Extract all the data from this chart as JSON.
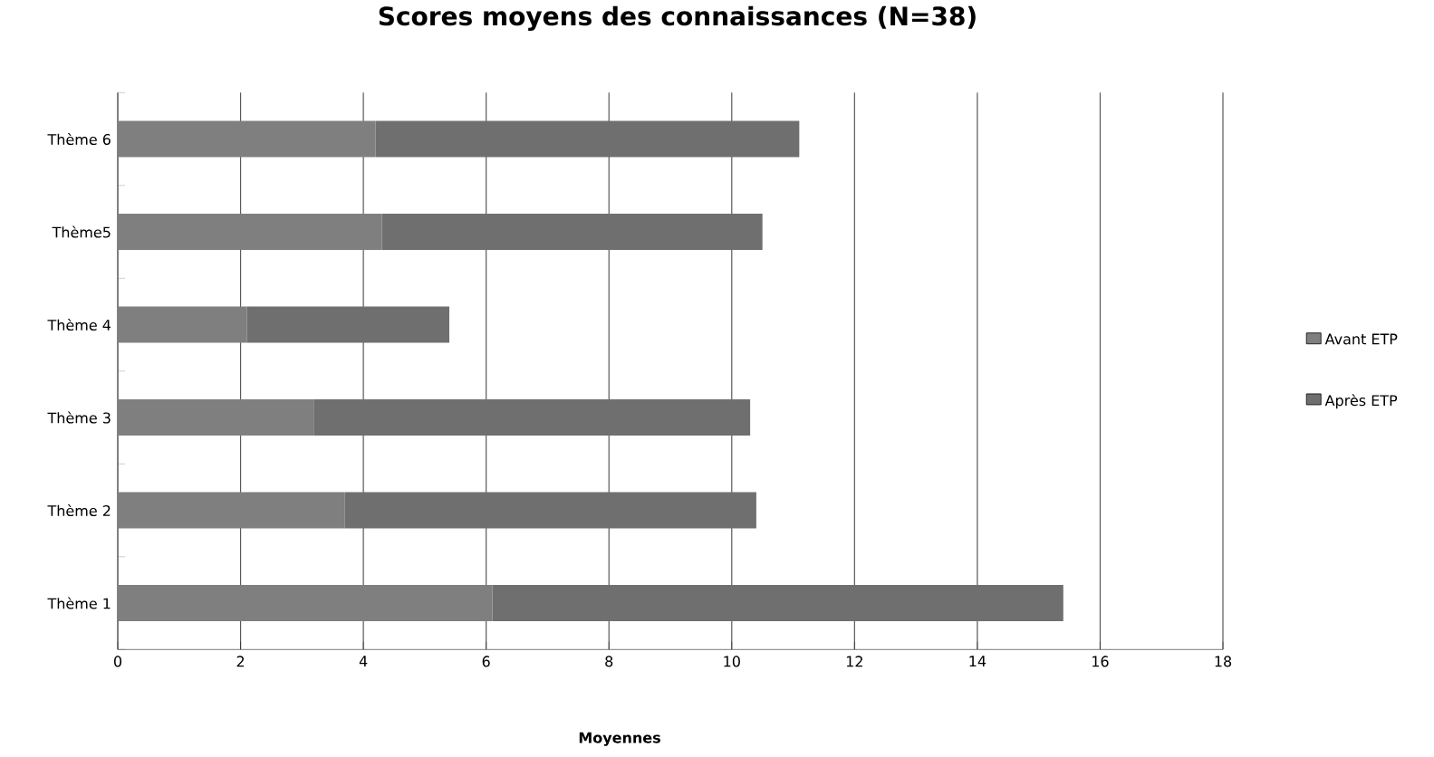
{
  "chart_data": {
    "type": "bar",
    "orientation": "horizontal",
    "stacked": true,
    "title": "Scores moyens des connaissances (N=38)",
    "xlabel": "Moyennes",
    "categories": [
      "Thème 6",
      "Thème5",
      "Thème 4",
      "Thème 3",
      "Thème 2",
      "Thème 1"
    ],
    "series": [
      {
        "name": "Avant ETP",
        "color": "#7f7f7f",
        "values": [
          4.2,
          4.3,
          2.1,
          3.2,
          3.7,
          6.1
        ]
      },
      {
        "name": "Après ETP",
        "color": "#6f6f6f",
        "values": [
          6.9,
          6.2,
          3.3,
          7.1,
          6.7,
          9.3
        ]
      }
    ],
    "xlim": [
      0,
      18
    ],
    "xticks": [
      0,
      2,
      4,
      6,
      8,
      10,
      12,
      14,
      16,
      18
    ],
    "grid": "x",
    "legend": "right"
  }
}
